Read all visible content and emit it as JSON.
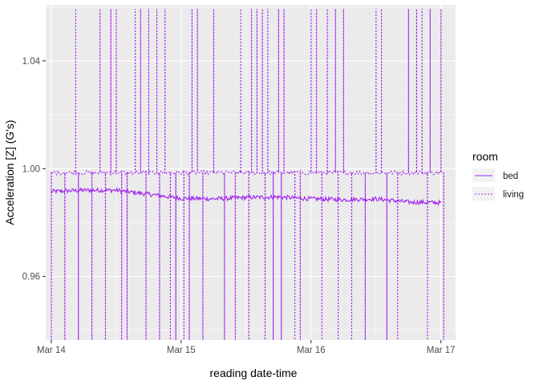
{
  "chart_data": {
    "type": "line",
    "xlabel": "reading date-time",
    "ylabel": "Acceleration [Z] (G's)",
    "x_ticks": [
      "Mar 14",
      "Mar 15",
      "Mar 16",
      "Mar 17"
    ],
    "y_ticks": [
      "0.96",
      "1.00",
      "1.04"
    ],
    "xlim": [
      "Mar 13 22:59",
      "Mar 17 02:43"
    ],
    "ylim": [
      0.9364,
      1.0608
    ],
    "grid": true,
    "legend": {
      "title": "room",
      "position": "right"
    },
    "series": [
      {
        "name": "bed",
        "line_style": "solid",
        "color": "#A020F0",
        "description_values": "continuous readings drifting from about 0.992 on Mar 14 to about 0.988 on Mar 17 with small noise",
        "x": [
          "Mar 14 00:00",
          "Mar 14 06:00",
          "Mar 14 12:00",
          "Mar 14 18:00",
          "Mar 15 00:00",
          "Mar 15 06:00",
          "Mar 15 12:00",
          "Mar 15 18:00",
          "Mar 16 00:00",
          "Mar 16 06:00",
          "Mar 16 12:00",
          "Mar 16 18:00",
          "Mar 17 00:00"
        ],
        "y": [
          0.9915,
          0.992,
          0.992,
          0.9905,
          0.989,
          0.9888,
          0.9893,
          0.9895,
          0.9888,
          0.9885,
          0.9888,
          0.9876,
          0.9874
        ]
      },
      {
        "name": "living",
        "line_style": "dotted",
        "color": "#A020F0",
        "baseline": 0.9985,
        "spike_max": 1.0593,
        "spike_min": 0.9364,
        "up_spikes": [
          "Mar 14 04:30",
          "Mar 14 09:00",
          "Mar 14 11:00",
          "Mar 14 12:00",
          "Mar 14 15:30",
          "Mar 14 16:30",
          "Mar 14 18:00",
          "Mar 14 19:30",
          "Mar 14 21:00",
          "Mar 15 02:00",
          "Mar 15 03:00",
          "Mar 15 06:00",
          "Mar 15 11:00",
          "Mar 15 13:00",
          "Mar 15 14:00",
          "Mar 15 15:00",
          "Mar 15 16:00",
          "Mar 15 18:00",
          "Mar 15 19:00",
          "Mar 16 00:00",
          "Mar 16 01:00",
          "Mar 16 03:00",
          "Mar 16 04:30",
          "Mar 16 06:00",
          "Mar 16 12:00",
          "Mar 16 13:00",
          "Mar 16 18:00",
          "Mar 16 19:30",
          "Mar 16 20:30",
          "Mar 16 22:00",
          "Mar 17 00:00"
        ],
        "down_spikes": [
          "Mar 14 00:00",
          "Mar 14 02:30",
          "Mar 14 05:00",
          "Mar 14 07:30",
          "Mar 14 10:00",
          "Mar 14 13:00",
          "Mar 14 14:00",
          "Mar 14 17:30",
          "Mar 14 20:00",
          "Mar 14 22:00",
          "Mar 14 23:00",
          "Mar 15 00:30",
          "Mar 15 01:30",
          "Mar 15 04:00",
          "Mar 15 08:00",
          "Mar 15 10:00",
          "Mar 15 12:30",
          "Mar 15 15:30",
          "Mar 15 17:00",
          "Mar 15 18:30",
          "Mar 15 21:00",
          "Mar 15 22:00",
          "Mar 16 02:00",
          "Mar 16 05:00",
          "Mar 16 07:30",
          "Mar 16 10:00",
          "Mar 16 14:00",
          "Mar 16 16:00",
          "Mar 16 21:30",
          "Mar 17 00:30"
        ]
      }
    ]
  }
}
